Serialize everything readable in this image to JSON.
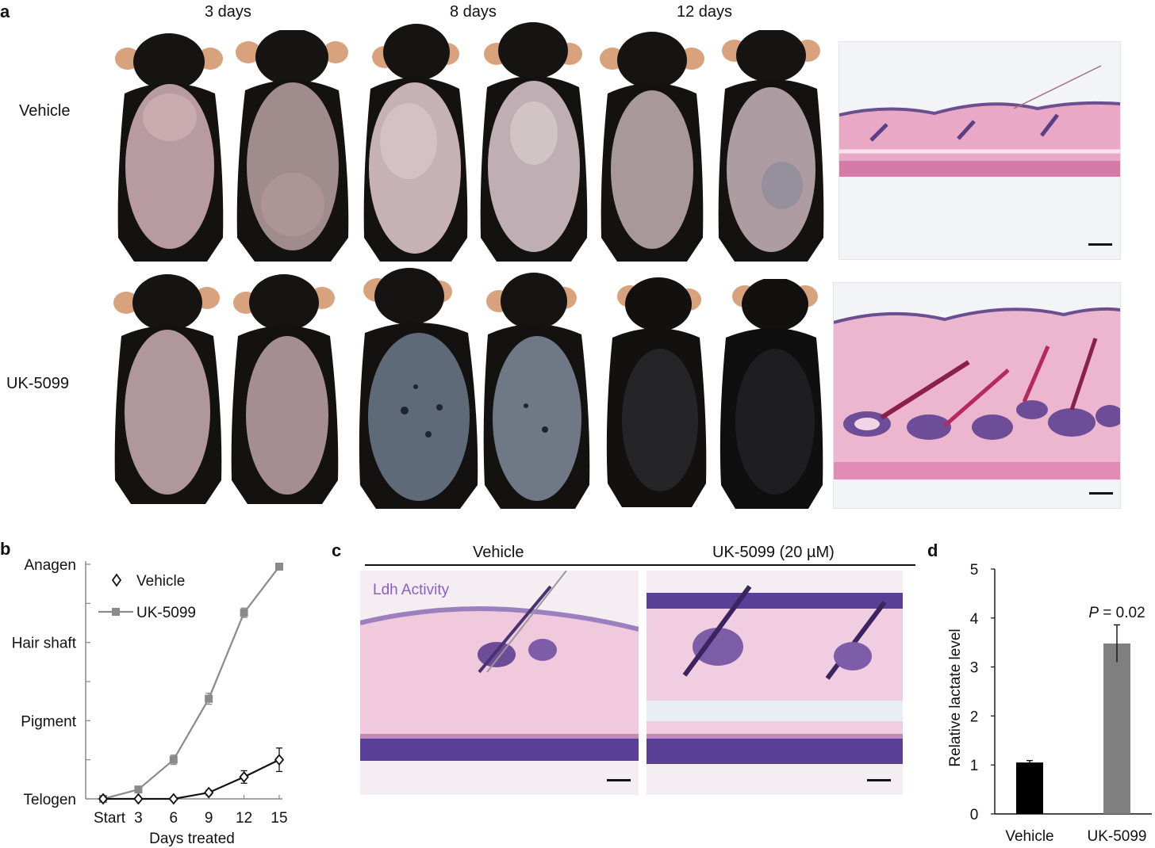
{
  "panel_a": {
    "label": "a",
    "timepoints": [
      "3 days",
      "8 days",
      "12 days"
    ],
    "rows": [
      "Vehicle",
      "UK-5099"
    ]
  },
  "panel_b": {
    "label": "b",
    "chart_data": {
      "type": "line",
      "xlabel": "Days treated",
      "x_tick_labels": [
        "Start",
        "3",
        "6",
        "9",
        "12",
        "15"
      ],
      "x": [
        0,
        3,
        6,
        9,
        12,
        15
      ],
      "y_tick_labels": [
        "Telogen",
        "Pigment",
        "Hair shaft",
        "Anagen"
      ],
      "ylim": [
        0,
        3
      ],
      "legend_position": "top-left",
      "series": [
        {
          "name": "Vehicle",
          "marker": "diamond-open",
          "color": "#111111",
          "values": [
            0,
            0,
            0,
            0.08,
            0.28,
            0.5
          ],
          "errors": [
            0,
            0,
            0,
            0.03,
            0.08,
            0.15
          ]
        },
        {
          "name": "UK-5099",
          "marker": "square",
          "color": "#8a8a8a",
          "values": [
            0,
            0.12,
            0.5,
            1.28,
            2.38,
            2.97
          ],
          "errors": [
            0,
            0.02,
            0.06,
            0.07,
            0.06,
            0.02
          ]
        }
      ]
    }
  },
  "panel_c": {
    "label": "c",
    "columns": [
      "Vehicle",
      "UK-5099 (20 µM)"
    ],
    "stain_label": "Ldh Activity"
  },
  "panel_d": {
    "label": "d",
    "chart_data": {
      "type": "bar",
      "categories": [
        "Vehicle",
        "UK-5099"
      ],
      "values": [
        1.05,
        3.48
      ],
      "errors": [
        0.04,
        0.38
      ],
      "colors": [
        "#000000",
        "#808080"
      ],
      "ylabel": "Relative lactate level",
      "ylim": [
        0,
        5
      ],
      "y_ticks": [
        0,
        1,
        2,
        3,
        4,
        5
      ],
      "annotation": "P = 0.02"
    }
  }
}
